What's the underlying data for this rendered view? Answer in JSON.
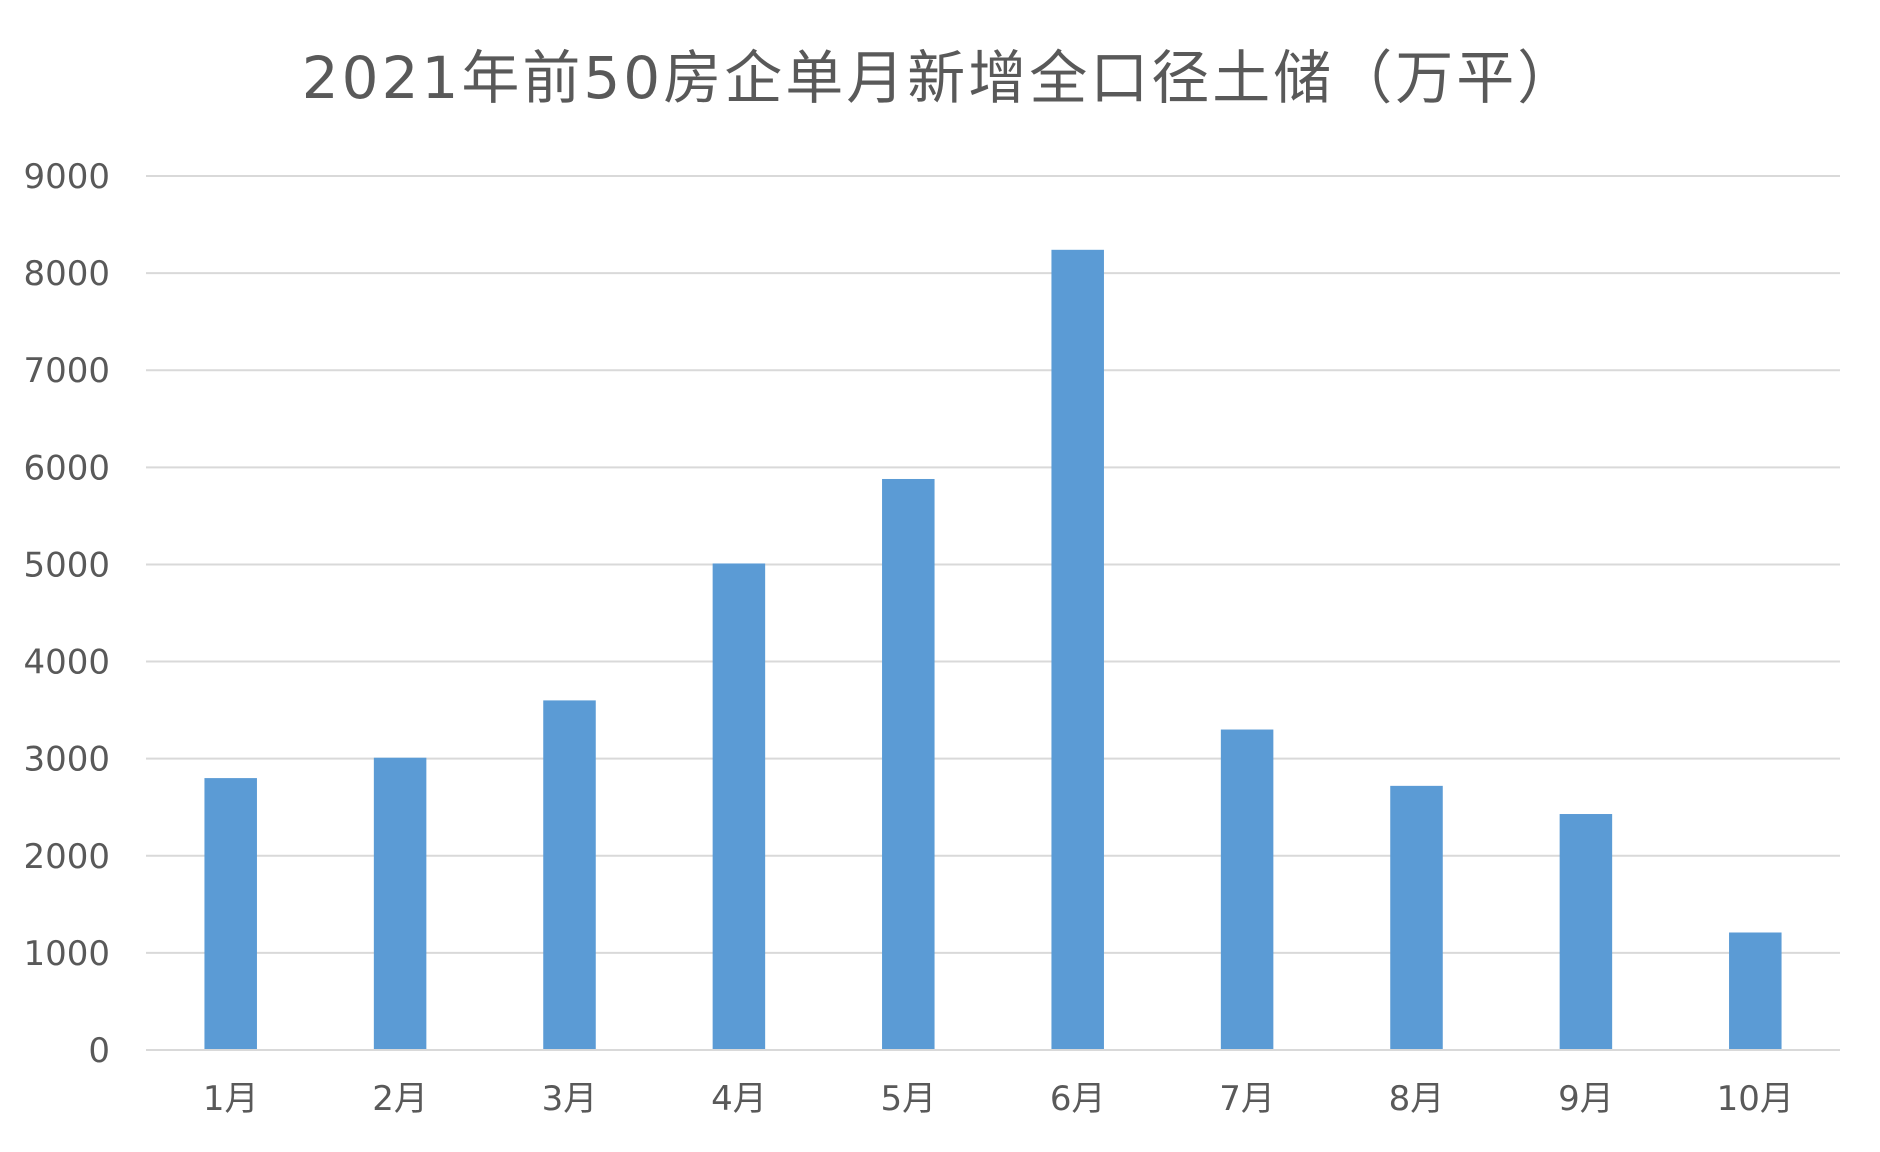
{
  "chart_data": {
    "type": "bar",
    "title": "2021年前50房企单月新增全口径土储（万平）",
    "xlabel": "",
    "ylabel": "",
    "categories": [
      "1月",
      "2月",
      "3月",
      "4月",
      "5月",
      "6月",
      "7月",
      "8月",
      "9月",
      "10月"
    ],
    "values": [
      2800,
      3010,
      3600,
      5010,
      5880,
      8240,
      3300,
      2720,
      2430,
      1210
    ],
    "ylim": [
      0,
      9000
    ],
    "yticks": [
      0,
      1000,
      2000,
      3000,
      4000,
      5000,
      6000,
      7000,
      8000,
      9000
    ],
    "grid": true,
    "legend": "none",
    "colors": {
      "bar": "#5b9bd5",
      "grid": "#d9d9d9",
      "text": "#595959"
    }
  }
}
